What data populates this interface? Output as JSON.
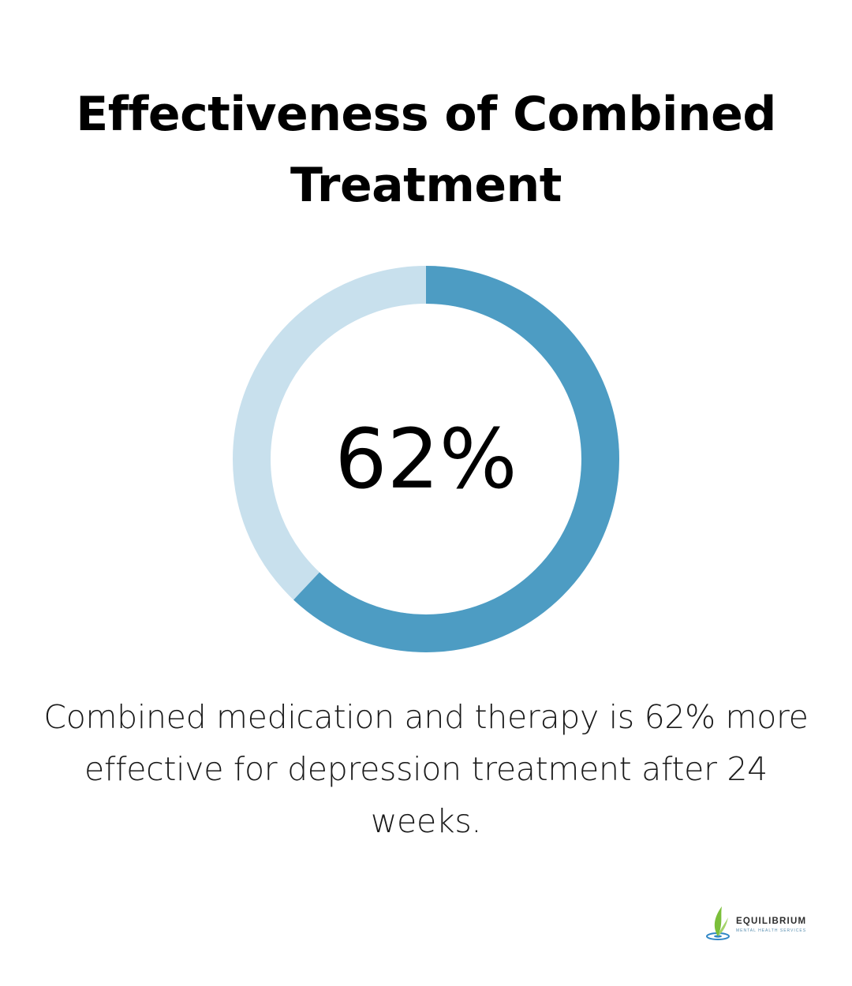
{
  "title": "Effectiveness of Combined Treatment",
  "chart_data": {
    "type": "pie",
    "value": 62,
    "value_label": "62%",
    "remainder": 38,
    "colors": {
      "filled": "#4d9cc3",
      "track": "#c8e0ed"
    }
  },
  "caption": "Combined medication and therapy is 62% more effective for depression treatment after 24 weeks.",
  "logo": {
    "name": "EQUILIBRIUM",
    "tagline": "MENTAL HEALTH SERVICES"
  }
}
